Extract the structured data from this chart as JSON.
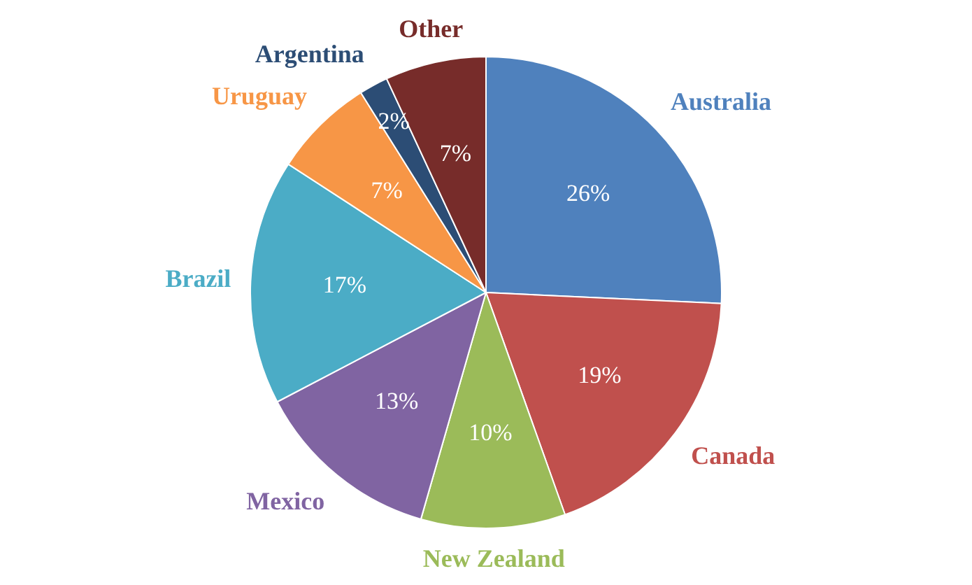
{
  "chart_data": {
    "type": "pie",
    "categories": [
      "Australia",
      "Canada",
      "New Zealand",
      "Mexico",
      "Brazil",
      "Uruguay",
      "Argentina",
      "Other"
    ],
    "values": [
      26,
      19,
      10,
      13,
      17,
      7,
      2,
      7
    ],
    "colors": [
      "#4f81bd",
      "#c0504d",
      "#9bbb59",
      "#8064a2",
      "#4bacc6",
      "#f79646",
      "#2c4d75",
      "#772c2a"
    ],
    "value_labels": [
      "26%",
      "19%",
      "10%",
      "13%",
      "17%",
      "7%",
      "2%",
      "7%"
    ],
    "legend": false
  }
}
